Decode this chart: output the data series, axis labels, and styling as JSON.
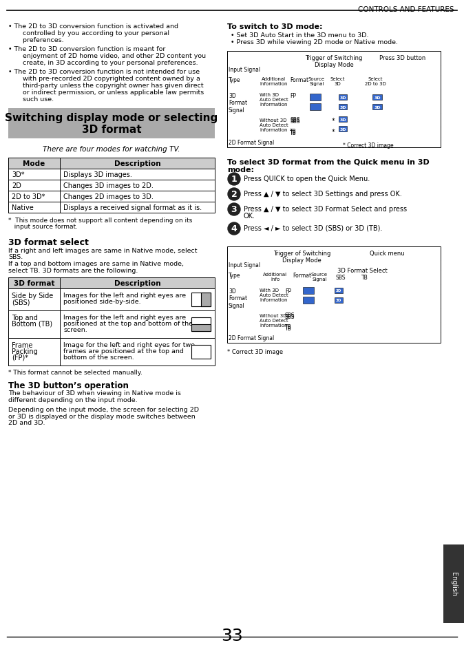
{
  "page_number": "33",
  "header_text": "CONTROLS AND FEATURES",
  "sidebar_text": "English",
  "bg_color": "#ffffff",
  "header_line_color": "#000000",
  "section_title": "Switching display mode or selecting\n3D format",
  "section_title_bg": "#cccccc",
  "italic_subtitle": "There are four modes for watching TV.",
  "mode_table": {
    "headers": [
      "Mode",
      "Description"
    ],
    "rows": [
      [
        "3D*",
        "Displays 3D images."
      ],
      [
        "2D",
        "Changes 3D images to 2D."
      ],
      [
        "2D to 3D*",
        "Changes 2D images to 3D."
      ],
      [
        "Native",
        "Displays a received signal format as it is."
      ]
    ]
  },
  "footnote1": "*  This mode does not support all content depending on its\n   input source format.",
  "section2_title": "3D format select",
  "section2_para": "If a right and left images are same in Native mode, select\nSBS.\nIf a top and bottom images are same in Native mode,\nselect TB. 3D formats are the following.",
  "format_table": {
    "headers": [
      "3D format",
      "Description"
    ],
    "rows": [
      [
        "Side by Side\n(SBS)",
        "Images for the left and right eyes are\npositioned side-by-side."
      ],
      [
        "Top and\nBottom (TB)",
        "Images for the left and right eyes are\npositioned at the top and bottom of the\nscreen."
      ],
      [
        "Frame\nPacking\n(FP)*",
        "Image for the left and right eyes for two\nframes are positioned at the top and\nbottom of the screen."
      ]
    ]
  },
  "footnote2": "* This format cannot be selected manually.",
  "section3_title": "The 3D button’s operation",
  "section3_para1": "The behaviour of 3D when viewing in Native mode is\ndifferent depending on the input mode.",
  "section3_para2": "Depending on the input mode, the screen for selecting 2D\nor 3D is displayed or the display mode switches between\n2D and 3D.",
  "right_col_bullets": [
    "• The 2D to 3D conversion function is activated and\n  controlled by you according to your personal\n  preferences.",
    "• The 2D to 3D conversion function is meant for\n  enjoyment of 2D home video, and other 2D content you\n  create, in 3D according to your personal preferences.",
    "• The 2D to 3D conversion function is not intended for use\n  with pre-recorded 2D copyrighted content owned by a\n  third-party unless the copyright owner has given direct\n  or indirect permission, or unless applicable law permits\n  such use."
  ],
  "switch3d_title": "To switch to 3D mode:",
  "switch3d_bullets": [
    "• Set 3D Auto Start in the 3D menu to 3D.",
    "• Press 3D while viewing 2D mode or Native mode."
  ],
  "quick_title": "To select 3D format from the Quick menu in 3D\nmode:",
  "quick_steps": [
    [
      "1",
      "Press QUICK to open the Quick Menu."
    ],
    [
      "2",
      "Press ▲ / ▼ to select 3D Settings and press OK."
    ],
    [
      "3",
      "Press ▲ / ▼ to select 3D Format Select and press\nOK."
    ],
    [
      "4",
      "Press ◄ / ► to select 3D (SBS) or 3D (TB)."
    ]
  ]
}
